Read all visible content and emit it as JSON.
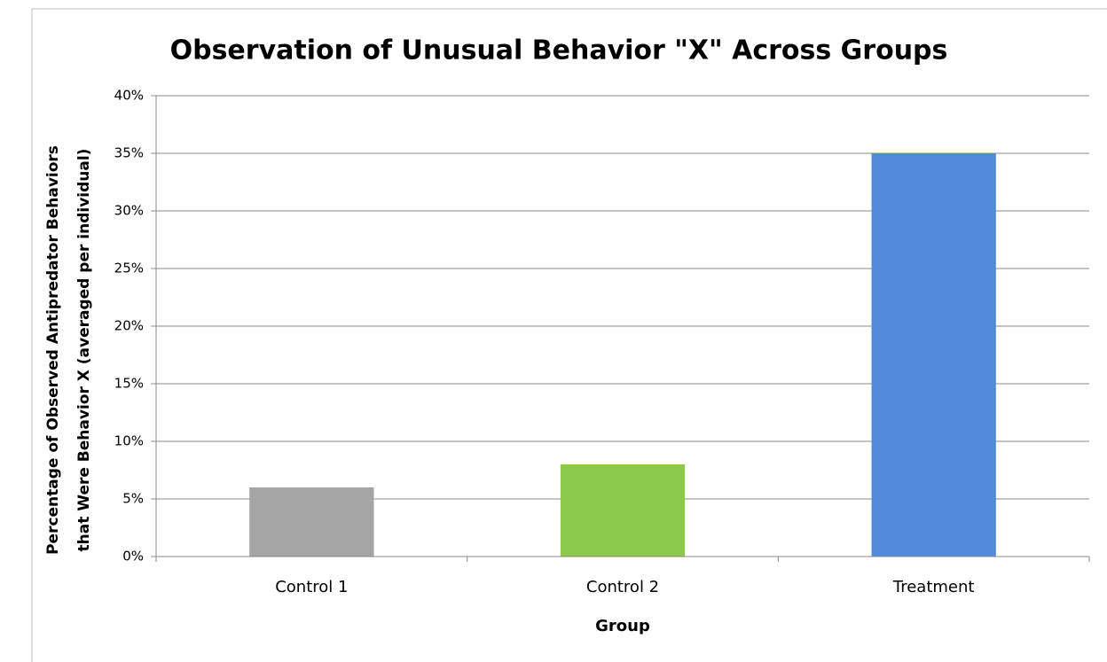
{
  "chart_data": {
    "type": "bar",
    "title": "Observation of Unusual Behavior \"X\" Across Groups",
    "xlabel": "Group",
    "ylabel": [
      "Percentage of Observed Antipredator Behaviors",
      "that Were Behavior X (averaged per individual)"
    ],
    "categories": [
      "Control 1",
      "Control 2",
      "Treatment"
    ],
    "values": [
      6,
      8,
      35
    ],
    "colors": [
      "#a5a5a5",
      "#8cc84b",
      "#518bd8"
    ],
    "ylim": [
      0,
      40
    ],
    "yticks": [
      {
        "value": 0,
        "label": "0%"
      },
      {
        "value": 5,
        "label": "5%"
      },
      {
        "value": 10,
        "label": "10%"
      },
      {
        "value": 15,
        "label": "15%"
      },
      {
        "value": 20,
        "label": "20%"
      },
      {
        "value": 25,
        "label": "25%"
      },
      {
        "value": 30,
        "label": "30%"
      },
      {
        "value": 35,
        "label": "35%"
      },
      {
        "value": 40,
        "label": "40%"
      }
    ],
    "grid": true
  }
}
